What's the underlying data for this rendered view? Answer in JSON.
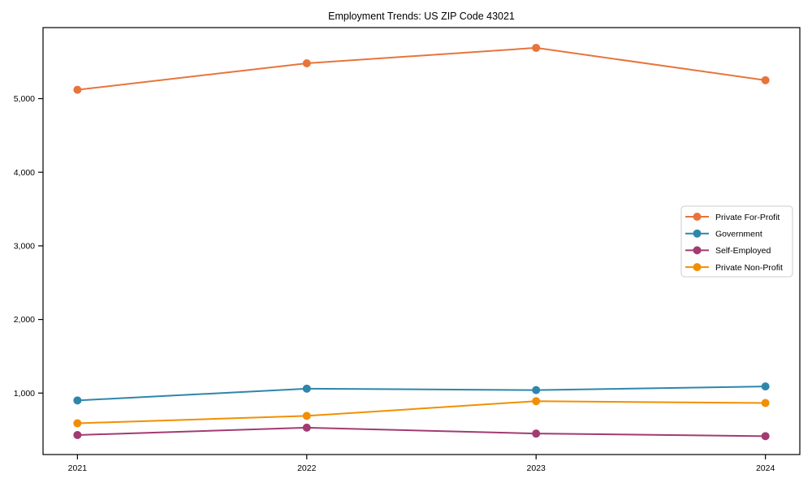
{
  "figure": {
    "background": "#ffffff",
    "title": "Employment Trends: US ZIP Code 43021"
  },
  "chart_data": {
    "type": "line",
    "title": "Employment Trends: US ZIP Code 43021",
    "x": [
      2021,
      2022,
      2023,
      2024
    ],
    "x_tick_labels": [
      "2021",
      "2022",
      "2023",
      "2024"
    ],
    "y_ticks": [
      1000,
      2000,
      3000,
      4000,
      5000
    ],
    "y_tick_labels": [
      "1,000",
      "2,000",
      "3,000",
      "4,000",
      "5,000"
    ],
    "xlim": [
      2020.85,
      2024.15
    ],
    "ylim": [
      165,
      5965
    ],
    "grid": false,
    "marker": "circle",
    "xlabel": "",
    "ylabel": "",
    "legend": {
      "position": "right-center",
      "border_color": "#cccccc",
      "background": "#ffffff"
    },
    "series": [
      {
        "name": "Private For-Profit",
        "color": "#E8743B",
        "values": [
          5120,
          5480,
          5690,
          5250
        ]
      },
      {
        "name": "Government",
        "color": "#2E86AB",
        "values": [
          900,
          1060,
          1040,
          1090
        ]
      },
      {
        "name": "Self-Employed",
        "color": "#A23B72",
        "values": [
          430,
          530,
          450,
          415
        ]
      },
      {
        "name": "Private Non-Profit",
        "color": "#F18F01",
        "values": [
          590,
          690,
          890,
          865
        ]
      }
    ]
  }
}
